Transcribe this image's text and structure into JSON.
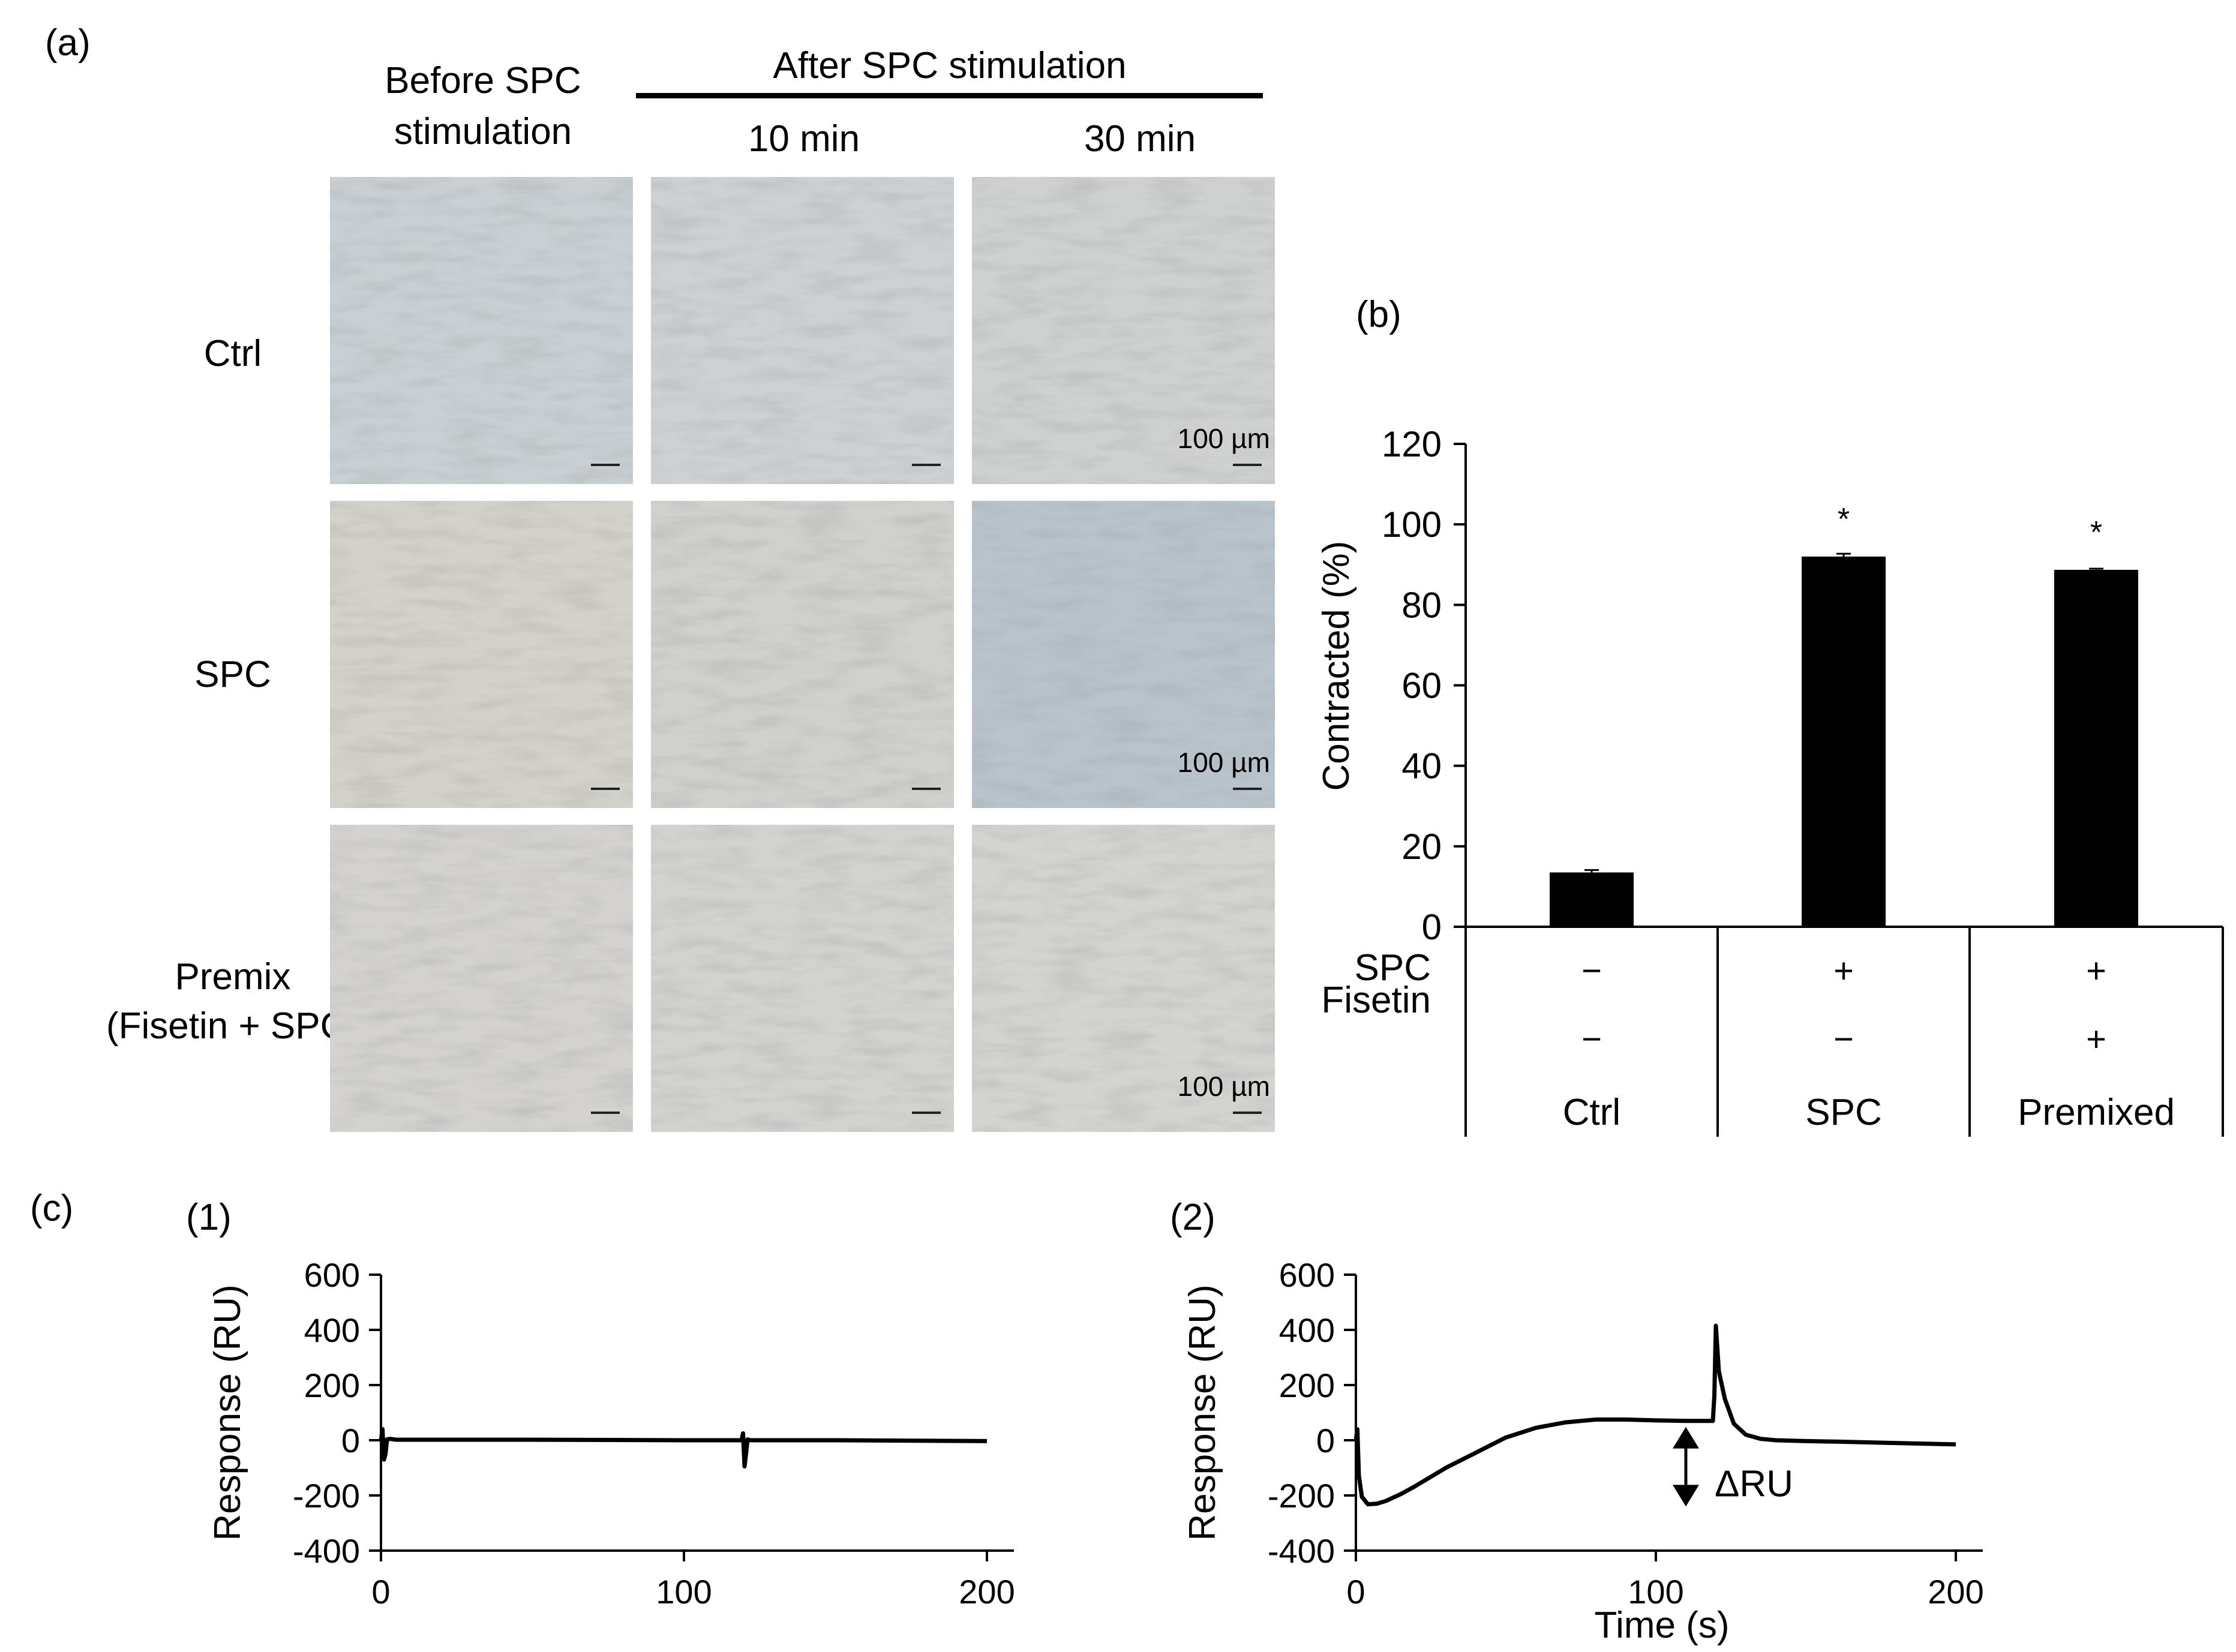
{
  "panel_a": {
    "label": "(a)",
    "col_before": [
      "Before SPC",
      "stimulation"
    ],
    "col_after_header": "After SPC stimulation",
    "col_10": "10 min",
    "col_30": "30 min",
    "rows": [
      {
        "label": [
          "Ctrl"
        ],
        "tints": [
          "#c9cfd3",
          "#cdd1d3",
          "#cfd1d1"
        ],
        "scale": "100 µm"
      },
      {
        "label": [
          "SPC"
        ],
        "tints": [
          "#d3d1cb",
          "#d0d0cd",
          "#b8c3cb"
        ],
        "scale": "100 µm"
      },
      {
        "label": [
          "Premix",
          "(Fisetin + SPC)"
        ],
        "tints": [
          "#d3d2cf",
          "#d2d2cf",
          "#d3d3d0"
        ],
        "scale": "100 µm"
      }
    ]
  },
  "chart_data": [
    {
      "id": "b",
      "panel_label": "(b)",
      "type": "bar",
      "ylabel": "Contracted (%)",
      "ylim": [
        0,
        120
      ],
      "yticks": [
        0,
        20,
        40,
        60,
        80,
        100,
        120
      ],
      "categories": [
        "Ctrl",
        "SPC",
        "Premixed"
      ],
      "values": [
        13.5,
        92,
        88.7
      ],
      "errors": [
        0.6,
        0.7,
        0.3
      ],
      "significance": [
        "",
        "*",
        "*"
      ],
      "factor_rows": [
        {
          "name": "SPC",
          "values": [
            "−",
            "+",
            "+"
          ]
        },
        {
          "name": "Fisetin",
          "values": [
            "−",
            "−",
            "+"
          ]
        }
      ]
    },
    {
      "id": "c1",
      "panel_label": "(1)",
      "type": "line",
      "xlabel": "",
      "ylabel": "Response (RU)",
      "xlim": [
        0,
        200
      ],
      "ylim": [
        -400,
        600
      ],
      "xticks": [
        0,
        100,
        200
      ],
      "yticks": [
        -400,
        -200,
        0,
        200,
        400,
        600
      ],
      "series": [
        {
          "name": "response",
          "x": [
            0,
            0.5,
            1,
            1.5,
            2,
            3,
            5,
            50,
            100,
            119,
            119.5,
            120,
            120.5,
            121,
            122,
            150,
            200
          ],
          "y": [
            0,
            40,
            -70,
            -50,
            3,
            5,
            2,
            2,
            0,
            0,
            25,
            -95,
            -50,
            3,
            0,
            0,
            -3
          ]
        }
      ]
    },
    {
      "id": "c2",
      "panel_label": "(2)",
      "type": "line",
      "xlabel": "Time (s)",
      "ylabel": "Response (RU)",
      "xlim": [
        0,
        200
      ],
      "ylim": [
        -400,
        600
      ],
      "xticks": [
        0,
        100,
        200
      ],
      "yticks": [
        -400,
        -200,
        0,
        200,
        400,
        600
      ],
      "annotation": "ΔRU",
      "series": [
        {
          "name": "response",
          "x": [
            0,
            0.5,
            1,
            2,
            4,
            7,
            10,
            15,
            20,
            30,
            40,
            50,
            60,
            70,
            80,
            90,
            100,
            110,
            115,
            118,
            119,
            119.5,
            120,
            121,
            123,
            126,
            130,
            135,
            140,
            150,
            160,
            180,
            200
          ],
          "y": [
            0,
            40,
            -130,
            -205,
            -232,
            -230,
            -220,
            -195,
            -165,
            -100,
            -45,
            10,
            45,
            65,
            75,
            75,
            72,
            70,
            70,
            70,
            70,
            160,
            415,
            250,
            150,
            60,
            20,
            5,
            0,
            -3,
            -5,
            -10,
            -15
          ]
        }
      ]
    }
  ],
  "panel_c_label": "(c)"
}
